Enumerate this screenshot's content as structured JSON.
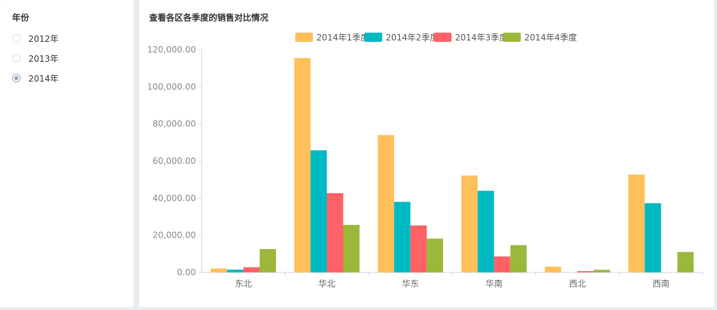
{
  "sidebar": {
    "title": "年份",
    "options": [
      {
        "label": "2012年",
        "checked": false
      },
      {
        "label": "2013年",
        "checked": false
      },
      {
        "label": "2014年",
        "checked": true
      }
    ]
  },
  "chart_data": {
    "type": "bar",
    "title": "查看各区各季度的销售对比情况",
    "categories": [
      "东北",
      "华北",
      "华东",
      "华南",
      "西北",
      "西南"
    ],
    "series": [
      {
        "name": "2014年1季度",
        "color": "#ffbf5a",
        "values": [
          2100,
          115500,
          74000,
          52200,
          3100,
          52700
        ]
      },
      {
        "name": "2014年2季度",
        "color": "#00bac3",
        "values": [
          1500,
          65800,
          38000,
          44000,
          0,
          37300
        ]
      },
      {
        "name": "2014年3季度",
        "color": "#ff6266",
        "values": [
          2800,
          42700,
          25300,
          8600,
          700,
          0
        ]
      },
      {
        "name": "2014年4季度",
        "color": "#9bb83a",
        "values": [
          12600,
          25600,
          18200,
          14700,
          1400,
          11000
        ]
      }
    ],
    "ylim": [
      0,
      120000
    ],
    "yticks": [
      "0.00",
      "20,000.00",
      "40,000.00",
      "60,000.00",
      "80,000.00",
      "100,000.00",
      "120,000.00"
    ],
    "legend_position": "top-center",
    "grid": false
  }
}
